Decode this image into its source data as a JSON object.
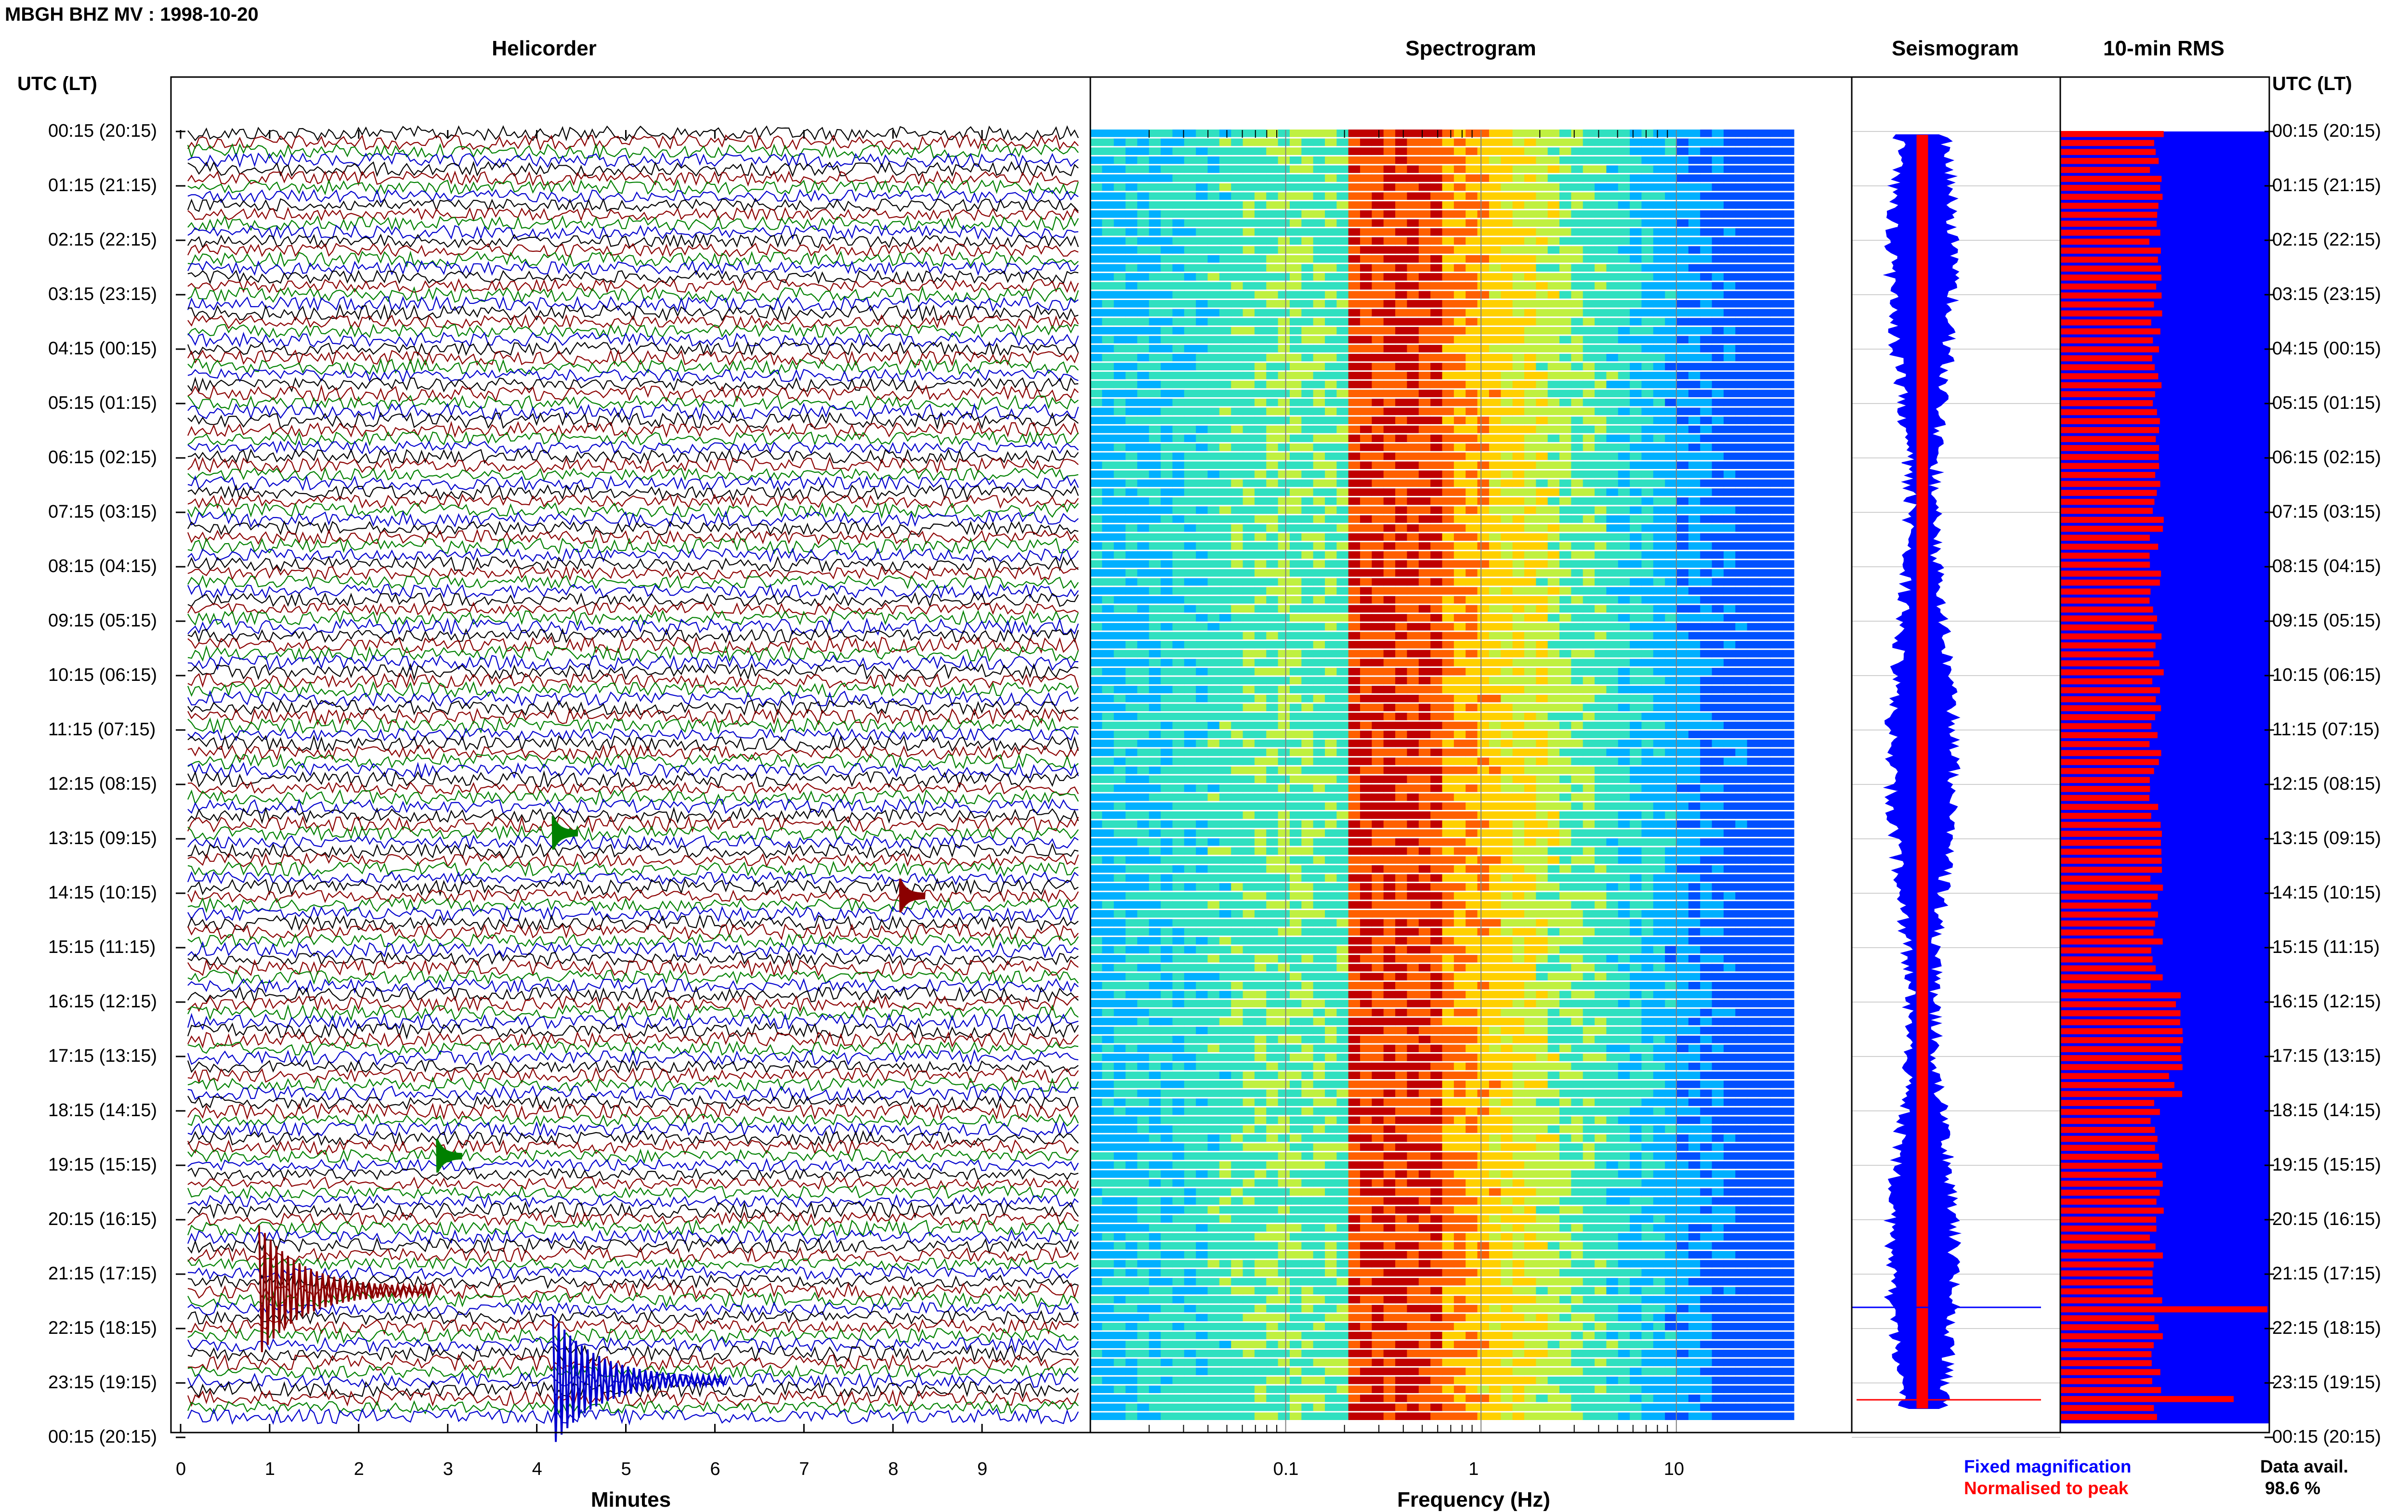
{
  "header": {
    "title": "MBGH BHZ MV : 1998-10-20"
  },
  "panels": {
    "helicorder": "Helicorder",
    "spectrogram": "Spectrogram",
    "seismogram": "Seismogram",
    "rms": "10-min RMS"
  },
  "time_axis": {
    "left_header": "UTC (LT)",
    "right_header": "UTC (LT)",
    "labels": [
      "00:15 (20:15)",
      "01:15 (21:15)",
      "02:15 (22:15)",
      "03:15 (23:15)",
      "04:15 (00:15)",
      "05:15 (01:15)",
      "06:15 (02:15)",
      "07:15 (03:15)",
      "08:15 (04:15)",
      "09:15 (05:15)",
      "10:15 (06:15)",
      "11:15 (07:15)",
      "12:15 (08:15)",
      "13:15 (09:15)",
      "14:15 (10:15)",
      "15:15 (11:15)",
      "16:15 (12:15)",
      "17:15 (13:15)",
      "18:15 (14:15)",
      "19:15 (15:15)",
      "20:15 (16:15)",
      "21:15 (17:15)",
      "22:15 (18:15)",
      "23:15 (19:15)",
      "00:15 (20:15)"
    ]
  },
  "helicorder": {
    "xlabel": "Minutes",
    "ticks": [
      "0",
      "1",
      "2",
      "3",
      "4",
      "5",
      "6",
      "7",
      "8",
      "9"
    ],
    "trace_colors": [
      "#000000",
      "#8b0000",
      "#008000",
      "#0000cd"
    ]
  },
  "spectrogram": {
    "xlabel": "Frequency (Hz)",
    "ticks": [
      "0.1",
      "1",
      "10"
    ],
    "scale": "log"
  },
  "legend": {
    "fixed": "Fixed magnification",
    "normalised": "Normalised to peak",
    "fixed_color": "#0000ff",
    "normalised_color": "#ff0000",
    "avail_label": "Data avail.",
    "avail_value": "98.6 %"
  },
  "chart_data": [
    {
      "type": "line",
      "title": "Helicorder",
      "xlabel": "Minutes",
      "x_range": [
        0,
        10
      ],
      "rows": 144,
      "events": [
        {
          "row": 129,
          "minute": 0.8,
          "label": "large event"
        },
        {
          "row": 139,
          "minute": 4.1,
          "label": "large event"
        },
        {
          "row": 78,
          "minute": 4.1
        },
        {
          "row": 85,
          "minute": 8.0
        },
        {
          "row": 114,
          "minute": 2.8
        }
      ]
    },
    {
      "type": "heatmap",
      "title": "Spectrogram",
      "xlabel": "Frequency (Hz)",
      "x_scale": "log",
      "x_range": [
        0.01,
        40
      ],
      "peak_band_hz": [
        0.2,
        0.6
      ]
    },
    {
      "type": "line",
      "title": "Seismogram",
      "series": [
        {
          "name": "Fixed magnification"
        },
        {
          "name": "Normalised to peak"
        }
      ]
    },
    {
      "type": "bar",
      "title": "10-min RMS",
      "bars": 144
    }
  ]
}
